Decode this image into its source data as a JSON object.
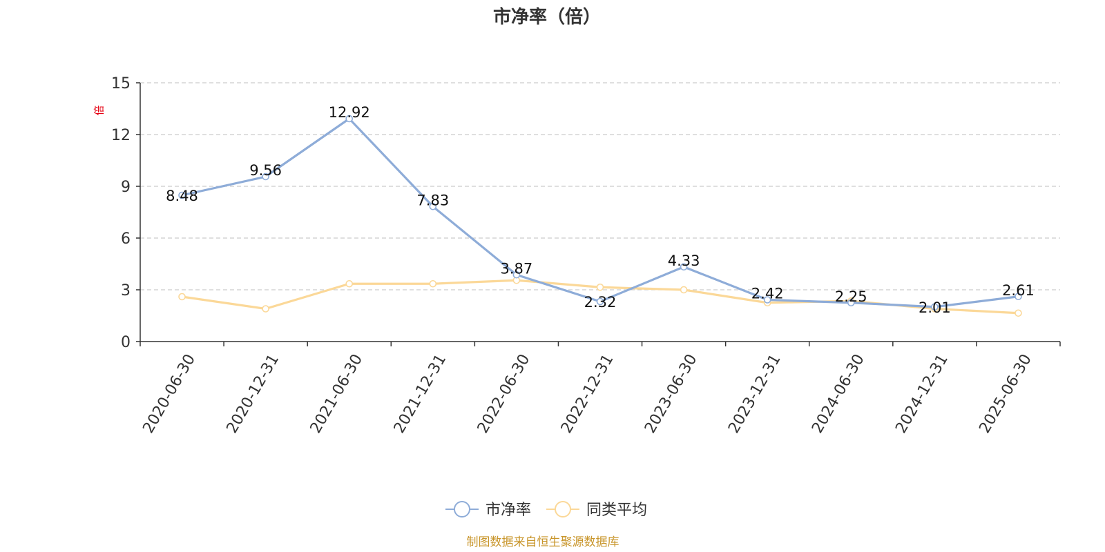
{
  "chart_data": {
    "type": "line",
    "title": "市净率（倍）",
    "ylabel": "倍",
    "ylim": [
      0,
      15
    ],
    "yticks": [
      0,
      3,
      6,
      9,
      12,
      15
    ],
    "grid": true,
    "legend_position": "bottom-center",
    "categories": [
      "2020-06-30",
      "2020-12-31",
      "2021-06-30",
      "2021-12-31",
      "2022-06-30",
      "2022-12-31",
      "2023-06-30",
      "2023-12-31",
      "2024-06-30",
      "2024-12-31",
      "2025-06-30"
    ],
    "series": [
      {
        "name": "市净率",
        "color": "#8eacd8",
        "show_labels": true,
        "values": [
          8.48,
          9.56,
          12.92,
          7.83,
          3.87,
          2.32,
          4.33,
          2.42,
          2.25,
          2.01,
          2.61
        ]
      },
      {
        "name": "同类平均",
        "color": "#fbd898",
        "show_labels": false,
        "values": [
          2.6,
          1.9,
          3.35,
          3.35,
          3.55,
          3.15,
          3.0,
          2.25,
          2.35,
          1.9,
          1.65
        ]
      }
    ]
  },
  "colors": {
    "axis": "#333333",
    "grid": "#cccccc",
    "unit_label": "#e60012",
    "source": "#c8952a"
  },
  "source_text": "制图数据来自恒生聚源数据库"
}
